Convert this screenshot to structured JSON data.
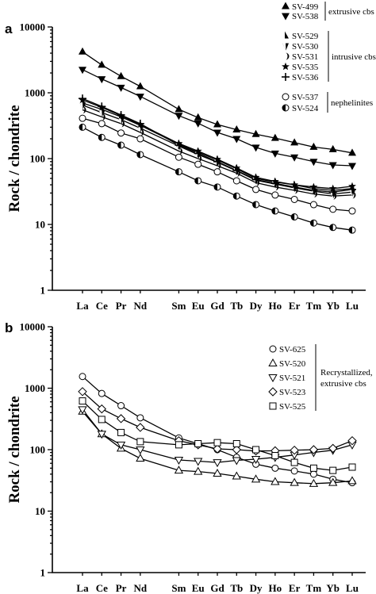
{
  "chart_data": [
    {
      "panel": "a",
      "type": "line",
      "ylabel": "Rock / chondrite",
      "yscale": "log",
      "ylim": [
        1,
        10000
      ],
      "y_ticks": [
        "1",
        "10",
        "100",
        "1000",
        "10000"
      ],
      "categories": [
        "La",
        "Ce",
        "Pr",
        "Nd",
        "Sm",
        "Eu",
        "Gd",
        "Tb",
        "Dy",
        "Ho",
        "Er",
        "Tm",
        "Yb",
        "Lu"
      ],
      "legend_groups": [
        {
          "label": "extrusive cbs",
          "series": [
            "SV-499",
            "SV-538"
          ]
        },
        {
          "label": "intrusive cbs",
          "series": [
            "SV-529",
            "SV-530",
            "SV-531",
            "SV-535",
            "SV-536"
          ]
        },
        {
          "label": "nephelinites",
          "series": [
            "SV-537",
            "SV-524"
          ]
        }
      ],
      "series": [
        {
          "name": "SV-499",
          "marker": "triangle-up",
          "values": [
            4200,
            2650,
            1780,
            1250,
            560,
            420,
            330,
            275,
            235,
            205,
            175,
            150,
            138,
            122
          ]
        },
        {
          "name": "SV-538",
          "marker": "triangle-down",
          "values": [
            2250,
            1620,
            1200,
            880,
            450,
            345,
            250,
            200,
            148,
            120,
            105,
            90,
            80,
            78
          ]
        },
        {
          "name": "SV-529",
          "marker": "half-triangle",
          "values": [
            700,
            560,
            430,
            320,
            165,
            125,
            95,
            70,
            50,
            44,
            40,
            35,
            33,
            35
          ]
        },
        {
          "name": "SV-530",
          "marker": "half-triangle-down",
          "values": [
            650,
            500,
            390,
            290,
            155,
            115,
            88,
            65,
            47,
            41,
            36,
            32,
            29,
            31
          ]
        },
        {
          "name": "SV-531",
          "marker": "crescent",
          "values": [
            550,
            430,
            340,
            250,
            130,
            100,
            78,
            60,
            43,
            37,
            33,
            29,
            27,
            28
          ]
        },
        {
          "name": "SV-535",
          "marker": "star",
          "values": [
            780,
            600,
            450,
            330,
            170,
            130,
            98,
            72,
            52,
            45,
            40,
            37,
            35,
            38
          ]
        },
        {
          "name": "SV-536",
          "marker": "plus",
          "values": [
            820,
            620,
            460,
            340,
            160,
            120,
            90,
            66,
            48,
            42,
            37,
            33,
            31,
            34
          ]
        },
        {
          "name": "SV-537",
          "marker": "circle-open",
          "values": [
            410,
            340,
            245,
            200,
            105,
            82,
            63,
            46,
            34,
            28,
            24,
            20,
            17,
            16
          ]
        },
        {
          "name": "SV-524",
          "marker": "circle-half",
          "values": [
            300,
            210,
            160,
            115,
            63,
            46,
            37,
            27,
            20,
            16,
            13,
            10.5,
            9,
            8.2
          ]
        }
      ]
    },
    {
      "panel": "b",
      "type": "line",
      "ylabel": "Rock / chondrite",
      "yscale": "log",
      "ylim": [
        1,
        10000
      ],
      "y_ticks": [
        "1",
        "10",
        "100",
        "1000",
        "10000"
      ],
      "categories": [
        "La",
        "Ce",
        "Pr",
        "Nd",
        "Sm",
        "Eu",
        "Gd",
        "Tb",
        "Dy",
        "Ho",
        "Er",
        "Tm",
        "Yb",
        "Lu"
      ],
      "legend_groups": [
        {
          "label": "Recrystallized, extrusive cbs",
          "series": [
            "SV-625",
            "SV-520",
            "SV-521",
            "SV-523",
            "SV-525"
          ]
        }
      ],
      "series": [
        {
          "name": "SV-625",
          "marker": "circle-open",
          "values": [
            1550,
            820,
            520,
            330,
            155,
            125,
            100,
            75,
            58,
            50,
            45,
            40,
            33,
            29
          ]
        },
        {
          "name": "SV-520",
          "marker": "triangle-up-open",
          "values": [
            420,
            180,
            105,
            72,
            46,
            44,
            41,
            37,
            33,
            30,
            29,
            28,
            29,
            31
          ]
        },
        {
          "name": "SV-521",
          "marker": "triangle-down-open",
          "values": [
            450,
            180,
            120,
            100,
            68,
            65,
            62,
            67,
            70,
            75,
            82,
            90,
            98,
            120
          ]
        },
        {
          "name": "SV-523",
          "marker": "diamond-open",
          "values": [
            880,
            460,
            320,
            230,
            140,
            120,
            103,
            100,
            95,
            96,
            98,
            100,
            105,
            140
          ]
        },
        {
          "name": "SV-525",
          "marker": "square-open",
          "values": [
            620,
            310,
            190,
            135,
            120,
            125,
            130,
            125,
            100,
            80,
            62,
            50,
            46,
            52
          ]
        }
      ]
    }
  ]
}
